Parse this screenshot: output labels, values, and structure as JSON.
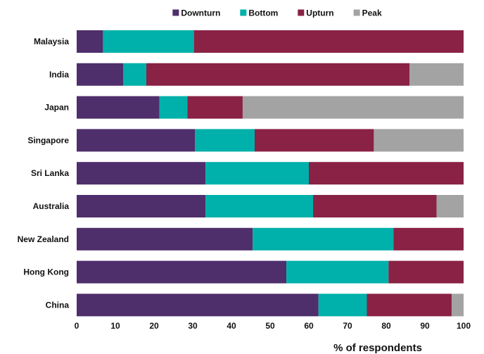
{
  "chart_data": {
    "type": "bar",
    "orientation": "horizontal",
    "stacked": true,
    "categories": [
      "Malaysia",
      "India",
      "Japan",
      "Singapore",
      "Sri Lanka",
      "Australia",
      "New Zealand",
      "Hong Kong",
      "China"
    ],
    "series": [
      {
        "name": "Downturn",
        "color": "#4e2e6b",
        "values": [
          6.8,
          12.0,
          21.4,
          30.6,
          33.3,
          33.3,
          45.5,
          54.2,
          62.5
        ]
      },
      {
        "name": "Bottom",
        "color": "#00b0aa",
        "values": [
          23.5,
          6.0,
          7.2,
          15.4,
          26.7,
          27.8,
          36.4,
          26.4,
          12.5
        ]
      },
      {
        "name": "Upturn",
        "color": "#892244",
        "values": [
          69.7,
          68.0,
          14.3,
          30.8,
          40.0,
          31.9,
          18.1,
          19.4,
          21.9
        ]
      },
      {
        "name": "Peak",
        "color": "#a3a3a3",
        "values": [
          0,
          14.0,
          57.1,
          23.2,
          0,
          7.0,
          0,
          0,
          3.1
        ]
      }
    ],
    "xlabel": "% of respondents",
    "xlim": [
      0,
      100
    ],
    "xticks": [
      "0",
      "10",
      "20",
      "30",
      "40",
      "50",
      "60",
      "70",
      "80",
      "90",
      "100"
    ],
    "grid": false,
    "legend_position": "top"
  }
}
